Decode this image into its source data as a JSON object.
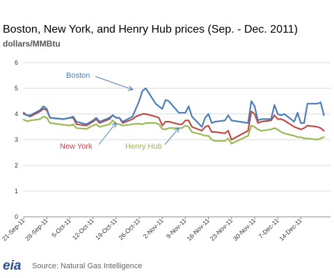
{
  "header": {
    "title": "Boston, New York, and Henry Hub prices (Sep. - Dec. 2011)",
    "units": "dollars/MMBtu"
  },
  "footer": {
    "logo_text": "eia",
    "source": "Source: Natural Gas Intelligence"
  },
  "colors": {
    "boston": "#4a7ebb",
    "new_york": "#be4b48",
    "henry_hub": "#98b954",
    "grid": "#d9d9d9",
    "axis": "#888888",
    "arrow": "#4a7ebb"
  },
  "chart_data": {
    "type": "line",
    "title": "Boston, New York, and Henry Hub prices (Sep. - Dec. 2011)",
    "ylabel": "dollars/MMBtu",
    "xlabel": "",
    "x_start": "2011-09-21",
    "x_end": "2011-12-23",
    "ylim": [
      0,
      6
    ],
    "yticks": [
      0,
      1,
      2,
      3,
      4,
      5,
      6
    ],
    "xticks": [
      "21-Sep-11",
      "28-Sep-11",
      "5-Oct-11",
      "12-Oct-11",
      "19-Oct-11",
      "26-Oct-11",
      "2-Nov-11",
      "9-Nov-11",
      "16-Nov-11",
      "23-Nov-11",
      "30-Nov-11",
      "7-Dec-11",
      "14-Dec-11"
    ],
    "grid": true,
    "legend": "inline labels",
    "series": [
      {
        "name": "Boston",
        "points": [
          [
            "2011-09-21",
            4.0
          ],
          [
            "2011-09-22",
            3.95
          ],
          [
            "2011-09-23",
            3.95
          ],
          [
            "2011-09-26",
            4.15
          ],
          [
            "2011-09-27",
            4.3
          ],
          [
            "2011-09-28",
            4.2
          ],
          [
            "2011-09-29",
            3.85
          ],
          [
            "2011-10-03",
            3.8
          ],
          [
            "2011-10-05",
            3.85
          ],
          [
            "2011-10-06",
            3.9
          ],
          [
            "2011-10-07",
            3.7
          ],
          [
            "2011-10-10",
            3.6
          ],
          [
            "2011-10-12",
            3.75
          ],
          [
            "2011-10-13",
            3.85
          ],
          [
            "2011-10-14",
            3.7
          ],
          [
            "2011-10-17",
            3.85
          ],
          [
            "2011-10-18",
            3.95
          ],
          [
            "2011-10-19",
            3.85
          ],
          [
            "2011-10-20",
            3.85
          ],
          [
            "2011-10-21",
            3.7
          ],
          [
            "2011-10-24",
            3.9
          ],
          [
            "2011-10-25",
            4.2
          ],
          [
            "2011-10-26",
            4.5
          ],
          [
            "2011-10-27",
            4.9
          ],
          [
            "2011-10-28",
            5.0
          ],
          [
            "2011-10-31",
            4.4
          ],
          [
            "2011-11-01",
            4.3
          ],
          [
            "2011-11-02",
            4.2
          ],
          [
            "2011-11-03",
            4.55
          ],
          [
            "2011-11-04",
            4.5
          ],
          [
            "2011-11-07",
            4.05
          ],
          [
            "2011-11-08",
            4.05
          ],
          [
            "2011-11-09",
            4.05
          ],
          [
            "2011-11-10",
            4.3
          ],
          [
            "2011-11-11",
            3.9
          ],
          [
            "2011-11-14",
            3.5
          ],
          [
            "2011-11-15",
            3.85
          ],
          [
            "2011-11-16",
            4.0
          ],
          [
            "2011-11-17",
            3.65
          ],
          [
            "2011-11-18",
            3.7
          ],
          [
            "2011-11-21",
            3.75
          ],
          [
            "2011-11-22",
            3.95
          ],
          [
            "2011-11-23",
            3.75
          ],
          [
            "2011-11-28",
            3.65
          ],
          [
            "2011-11-29",
            4.5
          ],
          [
            "2011-11-30",
            4.3
          ],
          [
            "2011-12-01",
            3.75
          ],
          [
            "2011-12-02",
            3.8
          ],
          [
            "2011-12-05",
            3.8
          ],
          [
            "2011-12-06",
            4.35
          ],
          [
            "2011-12-07",
            4.0
          ],
          [
            "2011-12-08",
            3.95
          ],
          [
            "2011-12-09",
            4.0
          ],
          [
            "2011-12-12",
            3.7
          ],
          [
            "2011-12-13",
            4.05
          ],
          [
            "2011-12-14",
            3.65
          ],
          [
            "2011-12-15",
            3.65
          ],
          [
            "2011-12-16",
            4.4
          ],
          [
            "2011-12-19",
            4.4
          ],
          [
            "2011-12-20",
            4.45
          ],
          [
            "2011-12-21",
            3.95
          ]
        ]
      },
      {
        "name": "New York",
        "points": [
          [
            "2011-09-21",
            4.05
          ],
          [
            "2011-09-22",
            3.95
          ],
          [
            "2011-09-23",
            3.9
          ],
          [
            "2011-09-26",
            4.1
          ],
          [
            "2011-09-27",
            4.2
          ],
          [
            "2011-09-28",
            4.15
          ],
          [
            "2011-09-29",
            3.85
          ],
          [
            "2011-10-03",
            3.8
          ],
          [
            "2011-10-05",
            3.85
          ],
          [
            "2011-10-06",
            3.85
          ],
          [
            "2011-10-07",
            3.6
          ],
          [
            "2011-10-10",
            3.55
          ],
          [
            "2011-10-12",
            3.7
          ],
          [
            "2011-10-13",
            3.8
          ],
          [
            "2011-10-14",
            3.65
          ],
          [
            "2011-10-17",
            3.8
          ],
          [
            "2011-10-18",
            3.95
          ],
          [
            "2011-10-19",
            3.85
          ],
          [
            "2011-10-20",
            3.85
          ],
          [
            "2011-10-21",
            3.65
          ],
          [
            "2011-10-24",
            3.8
          ],
          [
            "2011-10-25",
            3.9
          ],
          [
            "2011-10-26",
            3.95
          ],
          [
            "2011-10-27",
            4.0
          ],
          [
            "2011-10-28",
            4.0
          ],
          [
            "2011-10-31",
            3.9
          ],
          [
            "2011-11-01",
            3.85
          ],
          [
            "2011-11-02",
            3.55
          ],
          [
            "2011-11-03",
            3.7
          ],
          [
            "2011-11-04",
            3.7
          ],
          [
            "2011-11-07",
            3.6
          ],
          [
            "2011-11-08",
            3.6
          ],
          [
            "2011-11-09",
            3.75
          ],
          [
            "2011-11-10",
            3.75
          ],
          [
            "2011-11-11",
            3.5
          ],
          [
            "2011-11-14",
            3.35
          ],
          [
            "2011-11-15",
            3.5
          ],
          [
            "2011-11-16",
            3.55
          ],
          [
            "2011-11-17",
            3.3
          ],
          [
            "2011-11-18",
            3.3
          ],
          [
            "2011-11-21",
            3.25
          ],
          [
            "2011-11-22",
            3.35
          ],
          [
            "2011-11-23",
            3.0
          ],
          [
            "2011-11-28",
            3.35
          ],
          [
            "2011-11-29",
            4.1
          ],
          [
            "2011-11-30",
            4.0
          ],
          [
            "2011-12-01",
            3.65
          ],
          [
            "2011-12-02",
            3.7
          ],
          [
            "2011-12-05",
            3.75
          ],
          [
            "2011-12-06",
            3.95
          ],
          [
            "2011-12-07",
            3.8
          ],
          [
            "2011-12-08",
            3.8
          ],
          [
            "2011-12-09",
            3.75
          ],
          [
            "2011-12-12",
            3.5
          ],
          [
            "2011-12-13",
            3.45
          ],
          [
            "2011-12-14",
            3.4
          ],
          [
            "2011-12-15",
            3.45
          ],
          [
            "2011-12-16",
            3.55
          ],
          [
            "2011-12-19",
            3.5
          ],
          [
            "2011-12-20",
            3.45
          ],
          [
            "2011-12-21",
            3.35
          ]
        ]
      },
      {
        "name": "Henry Hub",
        "points": [
          [
            "2011-09-21",
            3.78
          ],
          [
            "2011-09-22",
            3.72
          ],
          [
            "2011-09-23",
            3.75
          ],
          [
            "2011-09-26",
            3.8
          ],
          [
            "2011-09-27",
            3.9
          ],
          [
            "2011-09-28",
            3.85
          ],
          [
            "2011-09-29",
            3.65
          ],
          [
            "2011-10-03",
            3.58
          ],
          [
            "2011-10-05",
            3.55
          ],
          [
            "2011-10-06",
            3.6
          ],
          [
            "2011-10-07",
            3.45
          ],
          [
            "2011-10-10",
            3.42
          ],
          [
            "2011-10-12",
            3.55
          ],
          [
            "2011-10-13",
            3.6
          ],
          [
            "2011-10-14",
            3.5
          ],
          [
            "2011-10-17",
            3.6
          ],
          [
            "2011-10-18",
            3.75
          ],
          [
            "2011-10-19",
            3.62
          ],
          [
            "2011-10-20",
            3.6
          ],
          [
            "2011-10-21",
            3.55
          ],
          [
            "2011-10-24",
            3.6
          ],
          [
            "2011-10-25",
            3.62
          ],
          [
            "2011-10-26",
            3.62
          ],
          [
            "2011-10-27",
            3.6
          ],
          [
            "2011-10-28",
            3.65
          ],
          [
            "2011-10-31",
            3.65
          ],
          [
            "2011-11-01",
            3.6
          ],
          [
            "2011-11-02",
            3.42
          ],
          [
            "2011-11-03",
            3.4
          ],
          [
            "2011-11-04",
            3.45
          ],
          [
            "2011-11-07",
            3.45
          ],
          [
            "2011-11-08",
            3.45
          ],
          [
            "2011-11-09",
            3.55
          ],
          [
            "2011-11-10",
            3.5
          ],
          [
            "2011-11-11",
            3.3
          ],
          [
            "2011-11-14",
            3.2
          ],
          [
            "2011-11-15",
            3.15
          ],
          [
            "2011-11-16",
            3.15
          ],
          [
            "2011-11-17",
            3.0
          ],
          [
            "2011-11-18",
            2.95
          ],
          [
            "2011-11-21",
            2.95
          ],
          [
            "2011-11-22",
            3.05
          ],
          [
            "2011-11-23",
            2.85
          ],
          [
            "2011-11-28",
            3.15
          ],
          [
            "2011-11-29",
            3.55
          ],
          [
            "2011-11-30",
            3.5
          ],
          [
            "2011-12-01",
            3.4
          ],
          [
            "2011-12-02",
            3.35
          ],
          [
            "2011-12-05",
            3.4
          ],
          [
            "2011-12-06",
            3.45
          ],
          [
            "2011-12-07",
            3.4
          ],
          [
            "2011-12-08",
            3.3
          ],
          [
            "2011-12-09",
            3.25
          ],
          [
            "2011-12-12",
            3.15
          ],
          [
            "2011-12-13",
            3.1
          ],
          [
            "2011-12-14",
            3.1
          ],
          [
            "2011-12-15",
            3.05
          ],
          [
            "2011-12-16",
            3.05
          ],
          [
            "2011-12-19",
            3.0
          ],
          [
            "2011-12-20",
            3.05
          ],
          [
            "2011-12-21",
            3.1
          ]
        ]
      }
    ],
    "annotations": [
      {
        "text": "Boston",
        "series": "Boston",
        "points_to": [
          "2011-10-24",
          4.95
        ]
      },
      {
        "text": "New York",
        "series": "New York",
        "points_to": [
          "2011-10-19",
          3.65
        ]
      },
      {
        "text": "Henry Hub",
        "series": "Henry Hub",
        "points_to": [
          "2011-11-07",
          3.45
        ]
      }
    ]
  }
}
